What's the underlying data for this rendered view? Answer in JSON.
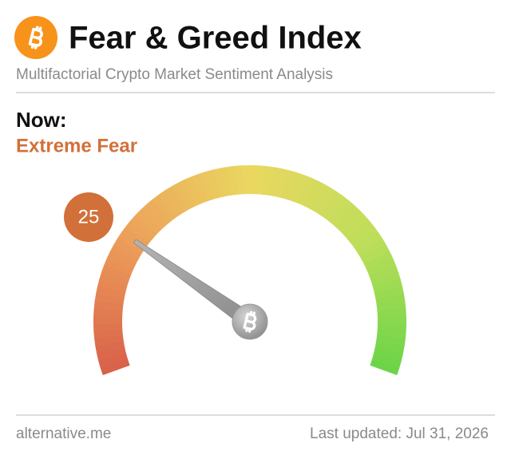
{
  "header": {
    "title": "Fear & Greed Index",
    "subtitle": "Multifactorial Crypto Market Sentiment Analysis"
  },
  "chart_data": {
    "type": "gauge",
    "label": "Now:",
    "classification": "Extreme Fear",
    "value": 25,
    "ylim": [
      0,
      100
    ],
    "color": "#d2703a"
  },
  "footer": {
    "source": "alternative.me",
    "updated": "Last updated: Jul 31, 2026"
  }
}
